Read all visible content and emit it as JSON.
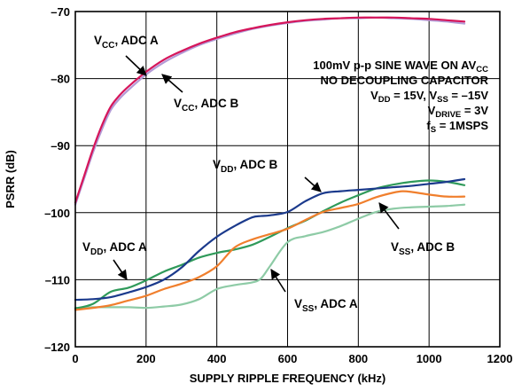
{
  "chart_data": {
    "type": "line",
    "title": "",
    "xlabel": "SUPPLY RIPPLE FREQUENCY (kHz)",
    "ylabel": "PSRR (dB)",
    "xlim": [
      0,
      1200
    ],
    "ylim": [
      -120,
      -70
    ],
    "xticks": [
      "0",
      "200",
      "400",
      "600",
      "800",
      "1000",
      "1200"
    ],
    "yticks": [
      "–70",
      "–80",
      "–90",
      "–100",
      "–110",
      "–120"
    ],
    "grid": true,
    "conditions": [
      {
        "text": "100mV p-p SINE WAVE ON AV",
        "sub": "CC",
        "after": ""
      },
      {
        "text": "NO DECOUPLING CAPACITOR",
        "sub": "",
        "after": ""
      },
      {
        "text": "V",
        "sub": "DD",
        "after": " = 15V, V",
        "sub2": "SS",
        "after2": " = –15V"
      },
      {
        "text": "V",
        "sub": "DRIVE",
        "after": " = 3V"
      },
      {
        "text": "f",
        "sub": "S",
        "after": " = 1MSPS"
      }
    ],
    "series": [
      {
        "name": "VCC, ADC A",
        "label_main": "V",
        "label_sub": "CC",
        "label_rest": ", ADC A",
        "color": "#d6155a",
        "x": [
          0,
          25,
          50,
          75,
          100,
          125,
          150,
          200,
          250,
          300,
          350,
          400,
          450,
          500,
          550,
          600,
          650,
          700,
          750,
          800,
          850,
          900,
          950,
          1000,
          1050,
          1100
        ],
        "y": [
          -98.5,
          -94.5,
          -90.5,
          -87.0,
          -84.2,
          -82.5,
          -81.2,
          -79.0,
          -77.2,
          -75.9,
          -74.8,
          -73.9,
          -73.1,
          -72.5,
          -72.0,
          -71.6,
          -71.3,
          -71.1,
          -71.0,
          -70.9,
          -70.9,
          -70.9,
          -71.0,
          -71.1,
          -71.3,
          -71.5
        ]
      },
      {
        "name": "VCC, ADC B",
        "label_main": "V",
        "label_sub": "CC",
        "label_rest": ", ADC B",
        "color": "#b39ad6",
        "x": [
          0,
          25,
          50,
          75,
          100,
          125,
          150,
          200,
          250,
          300,
          350,
          400,
          450,
          500,
          550,
          600,
          650,
          700,
          750,
          800,
          850,
          900,
          950,
          1000,
          1050,
          1100
        ],
        "y": [
          -98.8,
          -94.9,
          -91.0,
          -87.6,
          -84.7,
          -83.0,
          -81.7,
          -79.4,
          -77.6,
          -76.2,
          -75.0,
          -74.1,
          -73.3,
          -72.6,
          -72.1,
          -71.7,
          -71.4,
          -71.2,
          -71.0,
          -71.0,
          -70.9,
          -71.0,
          -71.1,
          -71.3,
          -71.5,
          -71.8
        ]
      },
      {
        "name": "VDD, ADC B",
        "label_main": "V",
        "label_sub": "DD",
        "label_rest": ", ADC B",
        "color": "#1b3a8c",
        "x": [
          0,
          50,
          100,
          150,
          200,
          250,
          300,
          350,
          400,
          450,
          500,
          525,
          550,
          600,
          650,
          700,
          750,
          800,
          850,
          900,
          950,
          1000,
          1050,
          1100
        ],
        "y": [
          -113.0,
          -112.9,
          -112.6,
          -111.9,
          -111.1,
          -110.0,
          -108.2,
          -105.7,
          -103.6,
          -102.0,
          -100.7,
          -100.5,
          -100.4,
          -99.9,
          -98.3,
          -97.1,
          -96.8,
          -96.6,
          -96.4,
          -96.2,
          -96.0,
          -95.7,
          -95.4,
          -95.0
        ]
      },
      {
        "name": "VDD, ADC A",
        "label_main": "V",
        "label_sub": "DD",
        "label_rest": ", ADC A",
        "color": "#2f9a5a",
        "x": [
          0,
          50,
          100,
          150,
          200,
          250,
          300,
          350,
          400,
          450,
          500,
          550,
          600,
          650,
          700,
          750,
          800,
          850,
          900,
          950,
          1000,
          1050,
          1100
        ],
        "y": [
          -114.3,
          -113.6,
          -111.8,
          -111.2,
          -110.1,
          -108.8,
          -107.8,
          -106.7,
          -106.0,
          -105.5,
          -104.8,
          -103.6,
          -102.3,
          -101.2,
          -99.8,
          -98.5,
          -97.4,
          -96.4,
          -95.8,
          -95.4,
          -95.2,
          -95.4,
          -95.9
        ]
      },
      {
        "name": "VSS, ADC B",
        "label_main": "V",
        "label_sub": "SS",
        "label_rest": ", ADC B",
        "color": "#f07f2d",
        "x": [
          0,
          50,
          100,
          150,
          200,
          250,
          300,
          350,
          400,
          450,
          500,
          550,
          600,
          650,
          700,
          750,
          800,
          850,
          900,
          925,
          950,
          1000,
          1050,
          1100
        ],
        "y": [
          -114.5,
          -114.2,
          -113.8,
          -113.1,
          -112.4,
          -111.4,
          -110.6,
          -109.6,
          -108.0,
          -105.2,
          -104.0,
          -103.2,
          -102.4,
          -101.1,
          -99.9,
          -99.3,
          -98.7,
          -97.7,
          -97.0,
          -96.8,
          -96.9,
          -97.3,
          -97.6,
          -97.6
        ]
      },
      {
        "name": "VSS, ADC A",
        "label_main": "V",
        "label_sub": "SS",
        "label_rest": ", ADC A",
        "color": "#8ecba6",
        "x": [
          0,
          50,
          100,
          150,
          200,
          250,
          300,
          350,
          400,
          450,
          500,
          525,
          550,
          600,
          650,
          700,
          750,
          800,
          850,
          900,
          950,
          1000,
          1050,
          1100
        ],
        "y": [
          -114.2,
          -114.1,
          -114.1,
          -114.1,
          -114.2,
          -114.0,
          -113.7,
          -112.9,
          -111.4,
          -110.8,
          -110.4,
          -109.8,
          -108.0,
          -104.4,
          -103.5,
          -102.9,
          -102.0,
          -100.9,
          -99.9,
          -99.4,
          -99.2,
          -99.1,
          -99.0,
          -98.8
        ]
      }
    ]
  }
}
